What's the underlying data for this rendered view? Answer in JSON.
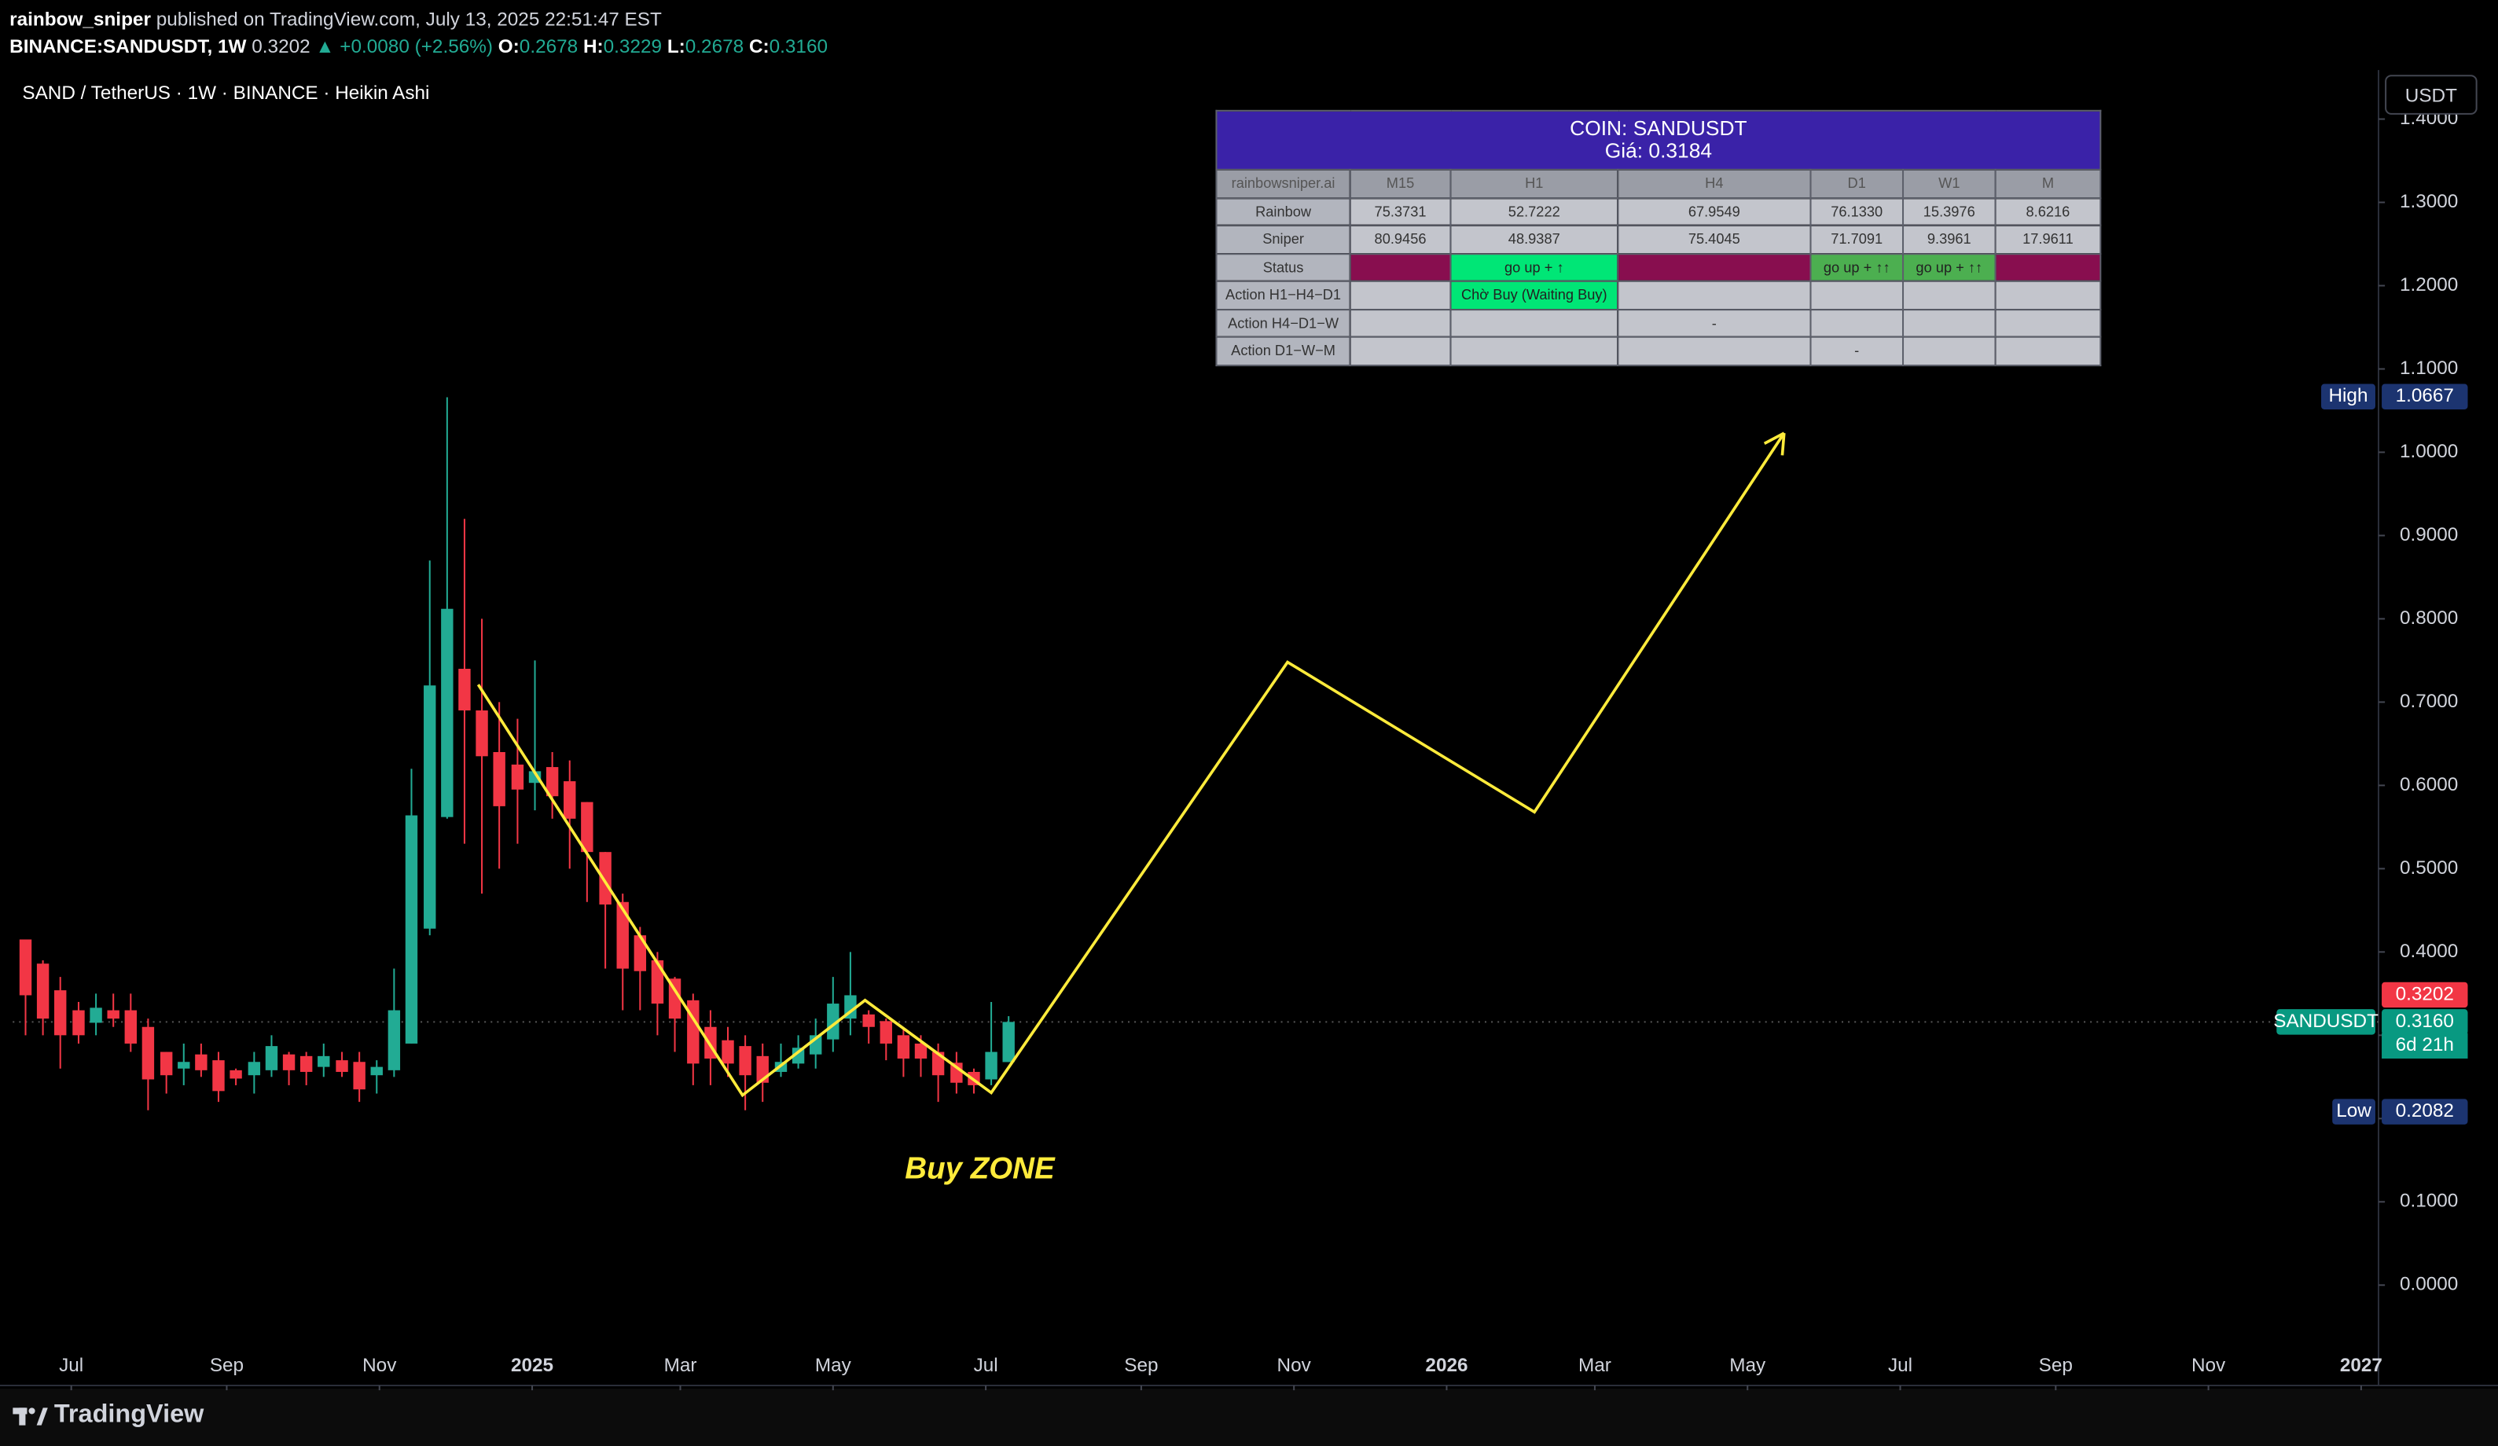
{
  "header": {
    "author": "rainbow_sniper",
    "published": "published on TradingView.com, July 13, 2025 22:51:47 EST",
    "symbol": "BINANCE:SANDUSDT, 1W",
    "last": "0.3202",
    "change": "▲ +0.0080 (+2.56%)",
    "ohlc": [
      [
        "O:",
        "0.2678"
      ],
      [
        "H:",
        "0.3229"
      ],
      [
        "L:",
        "0.2678"
      ],
      [
        "C:",
        "0.3160"
      ]
    ]
  },
  "chart_data": {
    "type": "candlestick",
    "title": "SAND / TetherUS · 1W · BINANCE · Heikin Ashi",
    "currency": "USDT",
    "up_color": "#22ab94",
    "down_color": "#f23645",
    "x": [
      2024.446,
      2024.465,
      2024.484,
      2024.504,
      2024.523,
      2024.542,
      2024.561,
      2024.58,
      2024.6,
      2024.619,
      2024.638,
      2024.657,
      2024.676,
      2024.696,
      2024.715,
      2024.734,
      2024.753,
      2024.772,
      2024.792,
      2024.811,
      2024.83,
      2024.849,
      2024.868,
      2024.888,
      2024.907,
      2024.926,
      2024.945,
      2024.964,
      2024.984,
      2025.003,
      2025.022,
      2025.041,
      2025.06,
      2025.08,
      2025.099,
      2025.118,
      2025.137,
      2025.156,
      2025.176,
      2025.195,
      2025.214,
      2025.233,
      2025.252,
      2025.272,
      2025.291,
      2025.31,
      2025.329,
      2025.348,
      2025.368,
      2025.387,
      2025.406,
      2025.425,
      2025.444,
      2025.464,
      2025.483,
      2025.502,
      2025.521
    ],
    "open": [
      0.415,
      0.386,
      0.354,
      0.33,
      0.315,
      0.33,
      0.33,
      0.31,
      0.28,
      0.26,
      0.277,
      0.27,
      0.258,
      0.252,
      0.258,
      0.277,
      0.275,
      0.262,
      0.27,
      0.268,
      0.252,
      0.258,
      0.29,
      0.428,
      0.562,
      0.74,
      0.69,
      0.64,
      0.625,
      0.603,
      0.622,
      0.605,
      0.58,
      0.52,
      0.46,
      0.42,
      0.39,
      0.368,
      0.342,
      0.31,
      0.294,
      0.287,
      0.275,
      0.256,
      0.266,
      0.277,
      0.295,
      0.32,
      0.325,
      0.317,
      0.3,
      0.29,
      0.28,
      0.267,
      0.256,
      0.247,
      0.2678
    ],
    "high": [
      0.415,
      0.39,
      0.37,
      0.34,
      0.35,
      0.35,
      0.35,
      0.32,
      0.28,
      0.29,
      0.29,
      0.28,
      0.26,
      0.28,
      0.3,
      0.28,
      0.28,
      0.29,
      0.28,
      0.28,
      0.27,
      0.38,
      0.62,
      0.87,
      1.066,
      0.92,
      0.8,
      0.7,
      0.68,
      0.75,
      0.64,
      0.63,
      0.58,
      0.52,
      0.47,
      0.43,
      0.4,
      0.37,
      0.35,
      0.33,
      0.31,
      0.3,
      0.29,
      0.29,
      0.3,
      0.32,
      0.37,
      0.4,
      0.33,
      0.32,
      0.31,
      0.3,
      0.29,
      0.28,
      0.26,
      0.34,
      0.3229
    ],
    "low": [
      0.3,
      0.3,
      0.26,
      0.29,
      0.3,
      0.31,
      0.28,
      0.21,
      0.23,
      0.24,
      0.25,
      0.22,
      0.24,
      0.23,
      0.25,
      0.24,
      0.24,
      0.25,
      0.25,
      0.22,
      0.23,
      0.25,
      0.29,
      0.42,
      0.56,
      0.53,
      0.47,
      0.5,
      0.53,
      0.57,
      0.56,
      0.5,
      0.46,
      0.38,
      0.33,
      0.33,
      0.3,
      0.28,
      0.24,
      0.24,
      0.25,
      0.21,
      0.22,
      0.25,
      0.26,
      0.26,
      0.28,
      0.3,
      0.29,
      0.27,
      0.25,
      0.25,
      0.22,
      0.23,
      0.23,
      0.24,
      0.2678
    ],
    "close": [
      0.348,
      0.32,
      0.3,
      0.3,
      0.333,
      0.32,
      0.29,
      0.247,
      0.252,
      0.268,
      0.258,
      0.233,
      0.248,
      0.268,
      0.287,
      0.258,
      0.256,
      0.275,
      0.256,
      0.235,
      0.262,
      0.33,
      0.564,
      0.72,
      0.812,
      0.69,
      0.635,
      0.575,
      0.595,
      0.617,
      0.587,
      0.56,
      0.52,
      0.457,
      0.38,
      0.377,
      0.338,
      0.32,
      0.266,
      0.272,
      0.266,
      0.252,
      0.243,
      0.268,
      0.285,
      0.3,
      0.338,
      0.348,
      0.31,
      0.29,
      0.272,
      0.272,
      0.252,
      0.243,
      0.24,
      0.28,
      0.316
    ],
    "projection": {
      "color": "#ffeb3b",
      "x": [
        2024.941,
        2025.23,
        2025.364,
        2025.502,
        2025.826,
        2026.096,
        2026.369
      ],
      "y": [
        0.721,
        0.228,
        0.342,
        0.231,
        0.748,
        0.568,
        1.023
      ]
    },
    "annotation": "Buy ZONE",
    "annotation_color": "#ffeb3b",
    "xlim": [
      2024.432,
      2027.019
    ],
    "ylim": [
      -0.1205,
      1.4512
    ],
    "xticks": [
      {
        "value": 2024.496,
        "label": "Jul"
      },
      {
        "value": 2024.666,
        "label": "Sep"
      },
      {
        "value": 2024.833,
        "label": "Nov"
      },
      {
        "value": 2025,
        "label": "2025"
      },
      {
        "value": 2025.162,
        "label": "Mar"
      },
      {
        "value": 2025.329,
        "label": "May"
      },
      {
        "value": 2025.496,
        "label": "Jul"
      },
      {
        "value": 2025.666,
        "label": "Sep"
      },
      {
        "value": 2025.833,
        "label": "Nov"
      },
      {
        "value": 2026,
        "label": "2026"
      },
      {
        "value": 2026.162,
        "label": "Mar"
      },
      {
        "value": 2026.329,
        "label": "May"
      },
      {
        "value": 2026.496,
        "label": "Jul"
      },
      {
        "value": 2026.666,
        "label": "Sep"
      },
      {
        "value": 2026.833,
        "label": "Nov"
      },
      {
        "value": 2027,
        "label": "2027"
      }
    ],
    "yticks": [
      {
        "value": 0,
        "label": "0.0000"
      },
      {
        "value": 0.1,
        "label": "0.1000"
      },
      {
        "value": 0.2,
        "label": "0.2000"
      },
      {
        "value": 0.3,
        "label": "0.3000"
      },
      {
        "value": 0.4,
        "label": "0.4000"
      },
      {
        "value": 0.5,
        "label": "0.5000"
      },
      {
        "value": 0.6,
        "label": "0.6000"
      },
      {
        "value": 0.7,
        "label": "0.7000"
      },
      {
        "value": 0.8,
        "label": "0.8000"
      },
      {
        "value": 0.9,
        "label": "0.9000"
      },
      {
        "value": 1,
        "label": "1.0000"
      },
      {
        "value": 1.1,
        "label": "1.1000"
      },
      {
        "value": 1.2,
        "label": "1.2000"
      },
      {
        "value": 1.3,
        "label": "1.3000"
      },
      {
        "value": 1.4,
        "label": "1.4000"
      }
    ],
    "price_labels": [
      {
        "name": "High",
        "value": 1.0667,
        "label": "1.0667",
        "color": "#1c3470"
      },
      {
        "name": "SANDUSDT",
        "value": 0.316,
        "label": "0.3160",
        "countdown": "6d 21h",
        "color": "#089981"
      },
      {
        "value": 0.3202,
        "label": "0.3202",
        "color": "#f23645"
      },
      {
        "name": "Low",
        "value": 0.2082,
        "label": "0.2082",
        "color": "#1c3470"
      }
    ]
  },
  "table": {
    "title": "COIN: SANDUSDT",
    "price": "Giá: 0.3184",
    "columns": [
      "rainbowsniper.ai",
      "M15",
      "H1",
      "H4",
      "D1",
      "W1",
      "M"
    ],
    "rows": [
      {
        "label": "Rainbow",
        "cells": [
          "75.3731",
          "52.7222",
          "67.9549",
          "76.1330",
          "15.3976",
          "8.6216"
        ]
      },
      {
        "label": "Sniper",
        "cells": [
          "80.9456",
          "48.9387",
          "75.4045",
          "71.7091",
          "9.3961",
          "17.9611"
        ]
      },
      {
        "label": "Status",
        "cells": [
          {
            "color": "#880e4f"
          },
          {
            "text": "go up + ↑",
            "color": "#00e676"
          },
          {
            "color": "#880e4f"
          },
          {
            "text": "go up + ↑↑",
            "color": "#4caf50"
          },
          {
            "text": "go up + ↑↑",
            "color": "#4caf50"
          },
          {
            "color": "#880e4f"
          }
        ]
      },
      {
        "label": "Action H1−H4−D1",
        "cells": [
          null,
          {
            "text": "Chờ Buy (Waiting Buy)",
            "color": "#00e676"
          },
          null,
          null,
          null,
          null
        ]
      },
      {
        "label": "Action H4−D1−W",
        "cells": [
          null,
          null,
          "-",
          null,
          null,
          null
        ]
      },
      {
        "label": "Action D1−W−M",
        "cells": [
          null,
          null,
          null,
          "-",
          null,
          null
        ]
      }
    ]
  },
  "footer": "TradingView"
}
